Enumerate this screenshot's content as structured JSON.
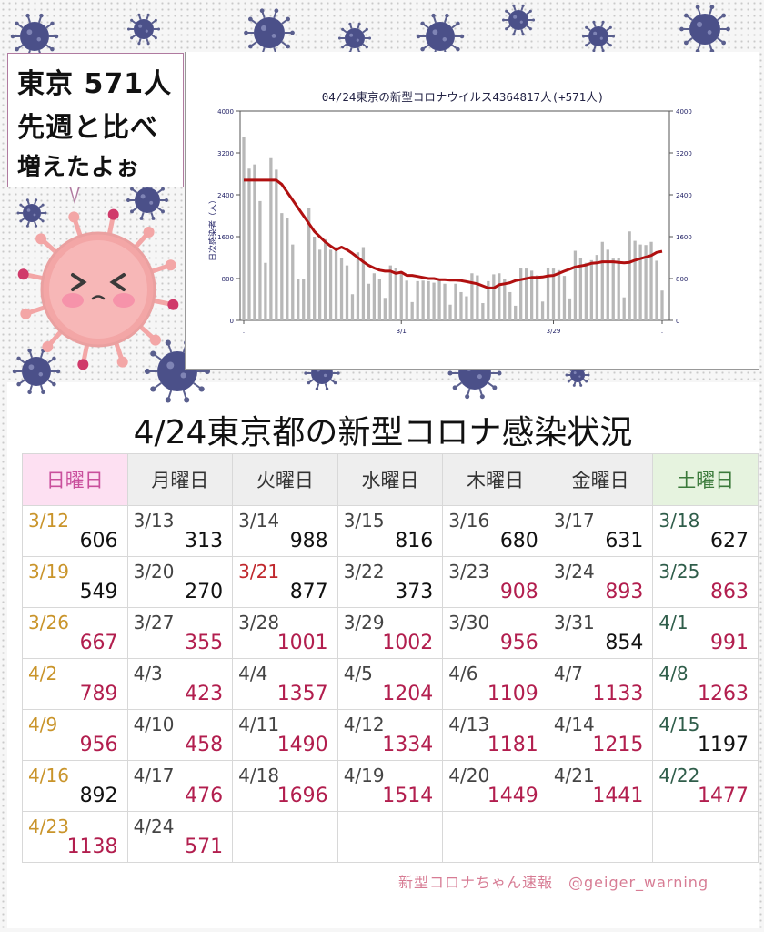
{
  "callout": {
    "line1": "東京 571人",
    "line2": "先週と比べ",
    "line3": "増えたよぉ"
  },
  "title": "4/24東京都の新型コロナ感染状況",
  "weekdays": [
    "日曜日",
    "月曜日",
    "火曜日",
    "水曜日",
    "木曜日",
    "金曜日",
    "土曜日"
  ],
  "calendar": [
    [
      {
        "date": "3/12",
        "value": "606"
      },
      {
        "date": "3/13",
        "value": "313"
      },
      {
        "date": "3/14",
        "value": "988"
      },
      {
        "date": "3/15",
        "value": "816"
      },
      {
        "date": "3/16",
        "value": "680"
      },
      {
        "date": "3/17",
        "value": "631"
      },
      {
        "date": "3/18",
        "value": "627"
      }
    ],
    [
      {
        "date": "3/19",
        "value": "549"
      },
      {
        "date": "3/20",
        "value": "270"
      },
      {
        "date": "3/21",
        "value": "877",
        "holiday": true
      },
      {
        "date": "3/22",
        "value": "373"
      },
      {
        "date": "3/23",
        "value": "908",
        "up": true
      },
      {
        "date": "3/24",
        "value": "893",
        "up": true
      },
      {
        "date": "3/25",
        "value": "863",
        "up": true
      }
    ],
    [
      {
        "date": "3/26",
        "value": "667",
        "up": true
      },
      {
        "date": "3/27",
        "value": "355",
        "up": true
      },
      {
        "date": "3/28",
        "value": "1001",
        "up": true
      },
      {
        "date": "3/29",
        "value": "1002",
        "up": true
      },
      {
        "date": "3/30",
        "value": "956",
        "up": true
      },
      {
        "date": "3/31",
        "value": "854"
      },
      {
        "date": "4/1",
        "value": "991",
        "up": true
      }
    ],
    [
      {
        "date": "4/2",
        "value": "789",
        "up": true
      },
      {
        "date": "4/3",
        "value": "423",
        "up": true
      },
      {
        "date": "4/4",
        "value": "1357",
        "up": true
      },
      {
        "date": "4/5",
        "value": "1204",
        "up": true
      },
      {
        "date": "4/6",
        "value": "1109",
        "up": true
      },
      {
        "date": "4/7",
        "value": "1133",
        "up": true
      },
      {
        "date": "4/8",
        "value": "1263",
        "up": true
      }
    ],
    [
      {
        "date": "4/9",
        "value": "956",
        "up": true
      },
      {
        "date": "4/10",
        "value": "458",
        "up": true
      },
      {
        "date": "4/11",
        "value": "1490",
        "up": true
      },
      {
        "date": "4/12",
        "value": "1334",
        "up": true
      },
      {
        "date": "4/13",
        "value": "1181",
        "up": true
      },
      {
        "date": "4/14",
        "value": "1215",
        "up": true
      },
      {
        "date": "4/15",
        "value": "1197"
      }
    ],
    [
      {
        "date": "4/16",
        "value": "892"
      },
      {
        "date": "4/17",
        "value": "476",
        "up": true
      },
      {
        "date": "4/18",
        "value": "1696",
        "up": true
      },
      {
        "date": "4/19",
        "value": "1514",
        "up": true
      },
      {
        "date": "4/20",
        "value": "1449",
        "up": true
      },
      {
        "date": "4/21",
        "value": "1441",
        "up": true
      },
      {
        "date": "4/22",
        "value": "1477",
        "up": true
      }
    ],
    [
      {
        "date": "4/23",
        "value": "1138",
        "up": true
      },
      {
        "date": "4/24",
        "value": "571",
        "up": true
      },
      {
        "date": "",
        "value": ""
      },
      {
        "date": "",
        "value": ""
      },
      {
        "date": "",
        "value": ""
      },
      {
        "date": "",
        "value": ""
      },
      {
        "date": "",
        "value": ""
      }
    ]
  ],
  "footer": "新型コロナちゃん速報　@geiger_warning",
  "colors": {
    "increase": "#b21e4e",
    "line": "#b01010",
    "bar": "#b8b8b8",
    "sunday_date": "#c9942a",
    "holiday_date": "#c0282d"
  },
  "icons": [
    "virus-icon",
    "mascot-virus-icon"
  ],
  "chart_data": {
    "type": "bar",
    "title": "04/24東京の新型コロナウイルス4364817人(+571人)",
    "ylabel": "日次感染者（人）",
    "ylim": [
      0,
      4000
    ],
    "yticks": [
      0,
      800,
      1600,
      2400,
      3200,
      4000
    ],
    "xtick_labels": [
      ".",
      "3/1",
      "3/29",
      "."
    ],
    "grid": false,
    "series": [
      {
        "type": "bar",
        "values": [
          3500,
          2900,
          2980,
          2280,
          1100,
          3100,
          2880,
          2050,
          1950,
          1450,
          800,
          800,
          2150,
          1600,
          1350,
          1550,
          1350,
          1400,
          1200,
          1050,
          500,
          1300,
          1400,
          700,
          900,
          800,
          430,
          1050,
          1000,
          900,
          760,
          350,
          750,
          760,
          750,
          720,
          760,
          700,
          300,
          700,
          540,
          460,
          900,
          860,
          330,
          750,
          880,
          900,
          800,
          540,
          280,
          1000,
          990,
          950,
          860,
          360,
          1000,
          990,
          960,
          850,
          420,
          1330,
          1200,
          1100,
          1150,
          1250,
          1500,
          1350,
          1180,
          1200,
          440,
          1700,
          1520,
          1450,
          1440,
          1500,
          1140,
          570
        ]
      },
      {
        "type": "line",
        "values": [
          2680,
          2680,
          2680,
          2680,
          2680,
          2680,
          2680,
          2600,
          2450,
          2300,
          2150,
          2000,
          1850,
          1700,
          1600,
          1500,
          1420,
          1350,
          1400,
          1350,
          1280,
          1200,
          1120,
          1050,
          1000,
          960,
          940,
          940,
          900,
          920,
          860,
          860,
          840,
          820,
          800,
          800,
          780,
          780,
          770,
          770,
          760,
          740,
          720,
          700,
          660,
          620,
          620,
          680,
          700,
          720,
          760,
          780,
          800,
          820,
          820,
          830,
          850,
          860,
          900,
          940,
          980,
          1020,
          1040,
          1060,
          1090,
          1100,
          1120,
          1120,
          1120,
          1110,
          1100,
          1110,
          1150,
          1180,
          1210,
          1240,
          1300,
          1320
        ]
      }
    ]
  }
}
